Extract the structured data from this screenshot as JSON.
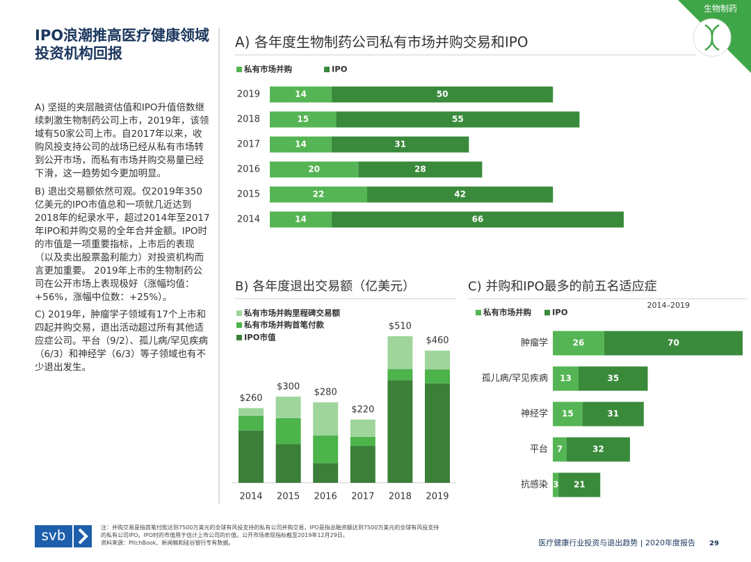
{
  "section_tag": "生物制药",
  "header": {
    "title": "IPO浪潮推高医疗健康领域投资机构回报"
  },
  "paragraphs": [
    "A) 坚挺的夹层融资估值和IPO升值倍数继续刺激生物制药公司上市，2019年，该领域有50家公司上市。自2017年以来，收购风投支持公司的战场已经从私有市场转到公开市场，而私有市场并购交易量已经下滑，这一趋势如今更加明显。",
    "B) 退出交易额依然可观。仅2019年350亿美元的IPO市值总和一项就几近达到2018年的纪录水平，超过2014年至2017年IPO和并购交易的全年合并金额。IPO时的市值是一项重要指标，上市后的表现（以及卖出股票盈利能力）对投资机构而言更加重要。 2019年上市的生物制药公司在公开市场上表现极好（涨幅均值：+56%，涨幅中位数：+25%）。",
    "C) 2019年，肿瘤学子领域有17个上市和四起并购交易，退出活动超过所有其他适应症公司。平台（9/2）、孤儿病/罕见疾病（6/3）和神经学（6/3）等子领域也有不少退出发生。"
  ],
  "chart_data": [
    {
      "type": "bar",
      "orientation": "horizontal",
      "stacked": true,
      "title": "A) 各年度生物制药公司私有市场并购交易和IPO",
      "categories": [
        "2019",
        "2018",
        "2017",
        "2016",
        "2015",
        "2014"
      ],
      "series": [
        {
          "name": "私有市场并购",
          "color": "#55b554",
          "values": [
            14,
            15,
            14,
            20,
            22,
            14
          ]
        },
        {
          "name": "IPO",
          "color": "#3a8a3b",
          "values": [
            50,
            55,
            31,
            28,
            42,
            66
          ]
        }
      ]
    },
    {
      "type": "bar",
      "orientation": "vertical",
      "stacked": true,
      "title": "B) 各年度退出交易额（亿美元）",
      "categories": [
        "2014",
        "2015",
        "2016",
        "2017",
        "2018",
        "2019"
      ],
      "series": [
        {
          "name": "IPO市值",
          "color": "#3b7f39",
          "values": [
            182,
            135,
            68,
            128,
            357,
            346
          ]
        },
        {
          "name": "私有市场并购首笔付款",
          "color": "#4db34b",
          "values": [
            51,
            90,
            97,
            32,
            39,
            48
          ]
        },
        {
          "name": "私有市场并购里程碑交易额",
          "color": "#9fd59b",
          "values": [
            27,
            75,
            115,
            60,
            114,
            66
          ]
        }
      ],
      "totals": [
        260,
        300,
        280,
        220,
        510,
        460
      ],
      "total_labels": [
        "$260",
        "$300",
        "$280",
        "$220",
        "$510",
        "$460"
      ]
    },
    {
      "type": "bar",
      "orientation": "horizontal",
      "stacked": true,
      "title": "C) 并购和IPO最多的前五名适应症",
      "subtitle": "2014–2019",
      "categories": [
        "肿瘤学",
        "孤儿病/罕见疾病",
        "神经学",
        "平台",
        "抗感染"
      ],
      "series": [
        {
          "name": "私有市场并购",
          "color": "#55b554",
          "values": [
            26,
            13,
            15,
            7,
            3
          ]
        },
        {
          "name": "IPO",
          "color": "#3a8a3b",
          "values": [
            70,
            35,
            31,
            32,
            21
          ]
        }
      ]
    }
  ],
  "footer": {
    "logo": "svb",
    "note": "注：并购交易是指首笔付款达到7500万美元的全球有风投支持的私有公司并购交易，IPO是指总融资额达到7500万美元的全球有风投支持的私有公司IPO。IPO时的市值用于估计上市公司的价值。公开市场表现指标截至2019年12月29日。",
    "source": "资料来源：PitchBook、新闻稿和硅谷银行专有数据。",
    "report": "医疗健康行业投资与退出趋势 | 2020年度报告",
    "page": "29"
  }
}
